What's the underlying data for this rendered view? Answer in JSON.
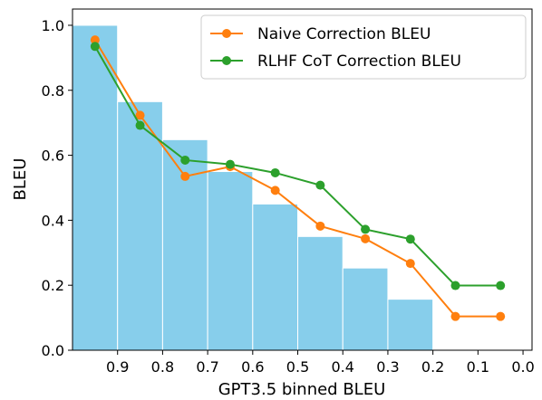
{
  "chart_data": {
    "type": "bar",
    "xlabel": "GPT3.5 binned BLEU",
    "ylabel": "BLEU",
    "xlim": [
      1.0,
      -0.02
    ],
    "ylim": [
      0.0,
      1.05
    ],
    "x_ticks": [
      "0.9",
      "0.8",
      "0.7",
      "0.6",
      "0.5",
      "0.4",
      "0.3",
      "0.2",
      "0.1",
      "0.0"
    ],
    "x_tick_values": [
      0.9,
      0.8,
      0.7,
      0.6,
      0.5,
      0.4,
      0.3,
      0.2,
      0.1,
      0.0
    ],
    "y_ticks": [
      "0.0",
      "0.2",
      "0.4",
      "0.6",
      "0.8",
      "1.0"
    ],
    "y_tick_values": [
      0.0,
      0.2,
      0.4,
      0.6,
      0.8,
      1.0
    ],
    "bins": [
      {
        "left": 0.9,
        "right": 1.0,
        "value": 1.0
      },
      {
        "left": 0.8,
        "right": 0.9,
        "value": 0.765
      },
      {
        "left": 0.7,
        "right": 0.8,
        "value": 0.648
      },
      {
        "left": 0.6,
        "right": 0.7,
        "value": 0.55
      },
      {
        "left": 0.5,
        "right": 0.6,
        "value": 0.45
      },
      {
        "left": 0.4,
        "right": 0.5,
        "value": 0.35
      },
      {
        "left": 0.3,
        "right": 0.4,
        "value": 0.253
      },
      {
        "left": 0.2,
        "right": 0.3,
        "value": 0.157
      }
    ],
    "bar_color": "#87ceeb",
    "series": [
      {
        "name": "Naive Correction BLEU",
        "color": "#ff7f0e",
        "x": [
          0.95,
          0.85,
          0.75,
          0.65,
          0.55,
          0.45,
          0.35,
          0.25,
          0.15,
          0.05
        ],
        "values": [
          0.955,
          0.723,
          0.535,
          0.565,
          0.492,
          0.382,
          0.343,
          0.267,
          0.104,
          0.104
        ]
      },
      {
        "name": "RLHF CoT Correction BLEU",
        "color": "#2ca02c",
        "x": [
          0.95,
          0.85,
          0.75,
          0.65,
          0.55,
          0.45,
          0.35,
          0.25,
          0.15,
          0.05
        ],
        "values": [
          0.935,
          0.692,
          0.585,
          0.572,
          0.546,
          0.508,
          0.372,
          0.342,
          0.199,
          0.199
        ]
      }
    ],
    "legend_position": "top-right",
    "grid": false
  }
}
